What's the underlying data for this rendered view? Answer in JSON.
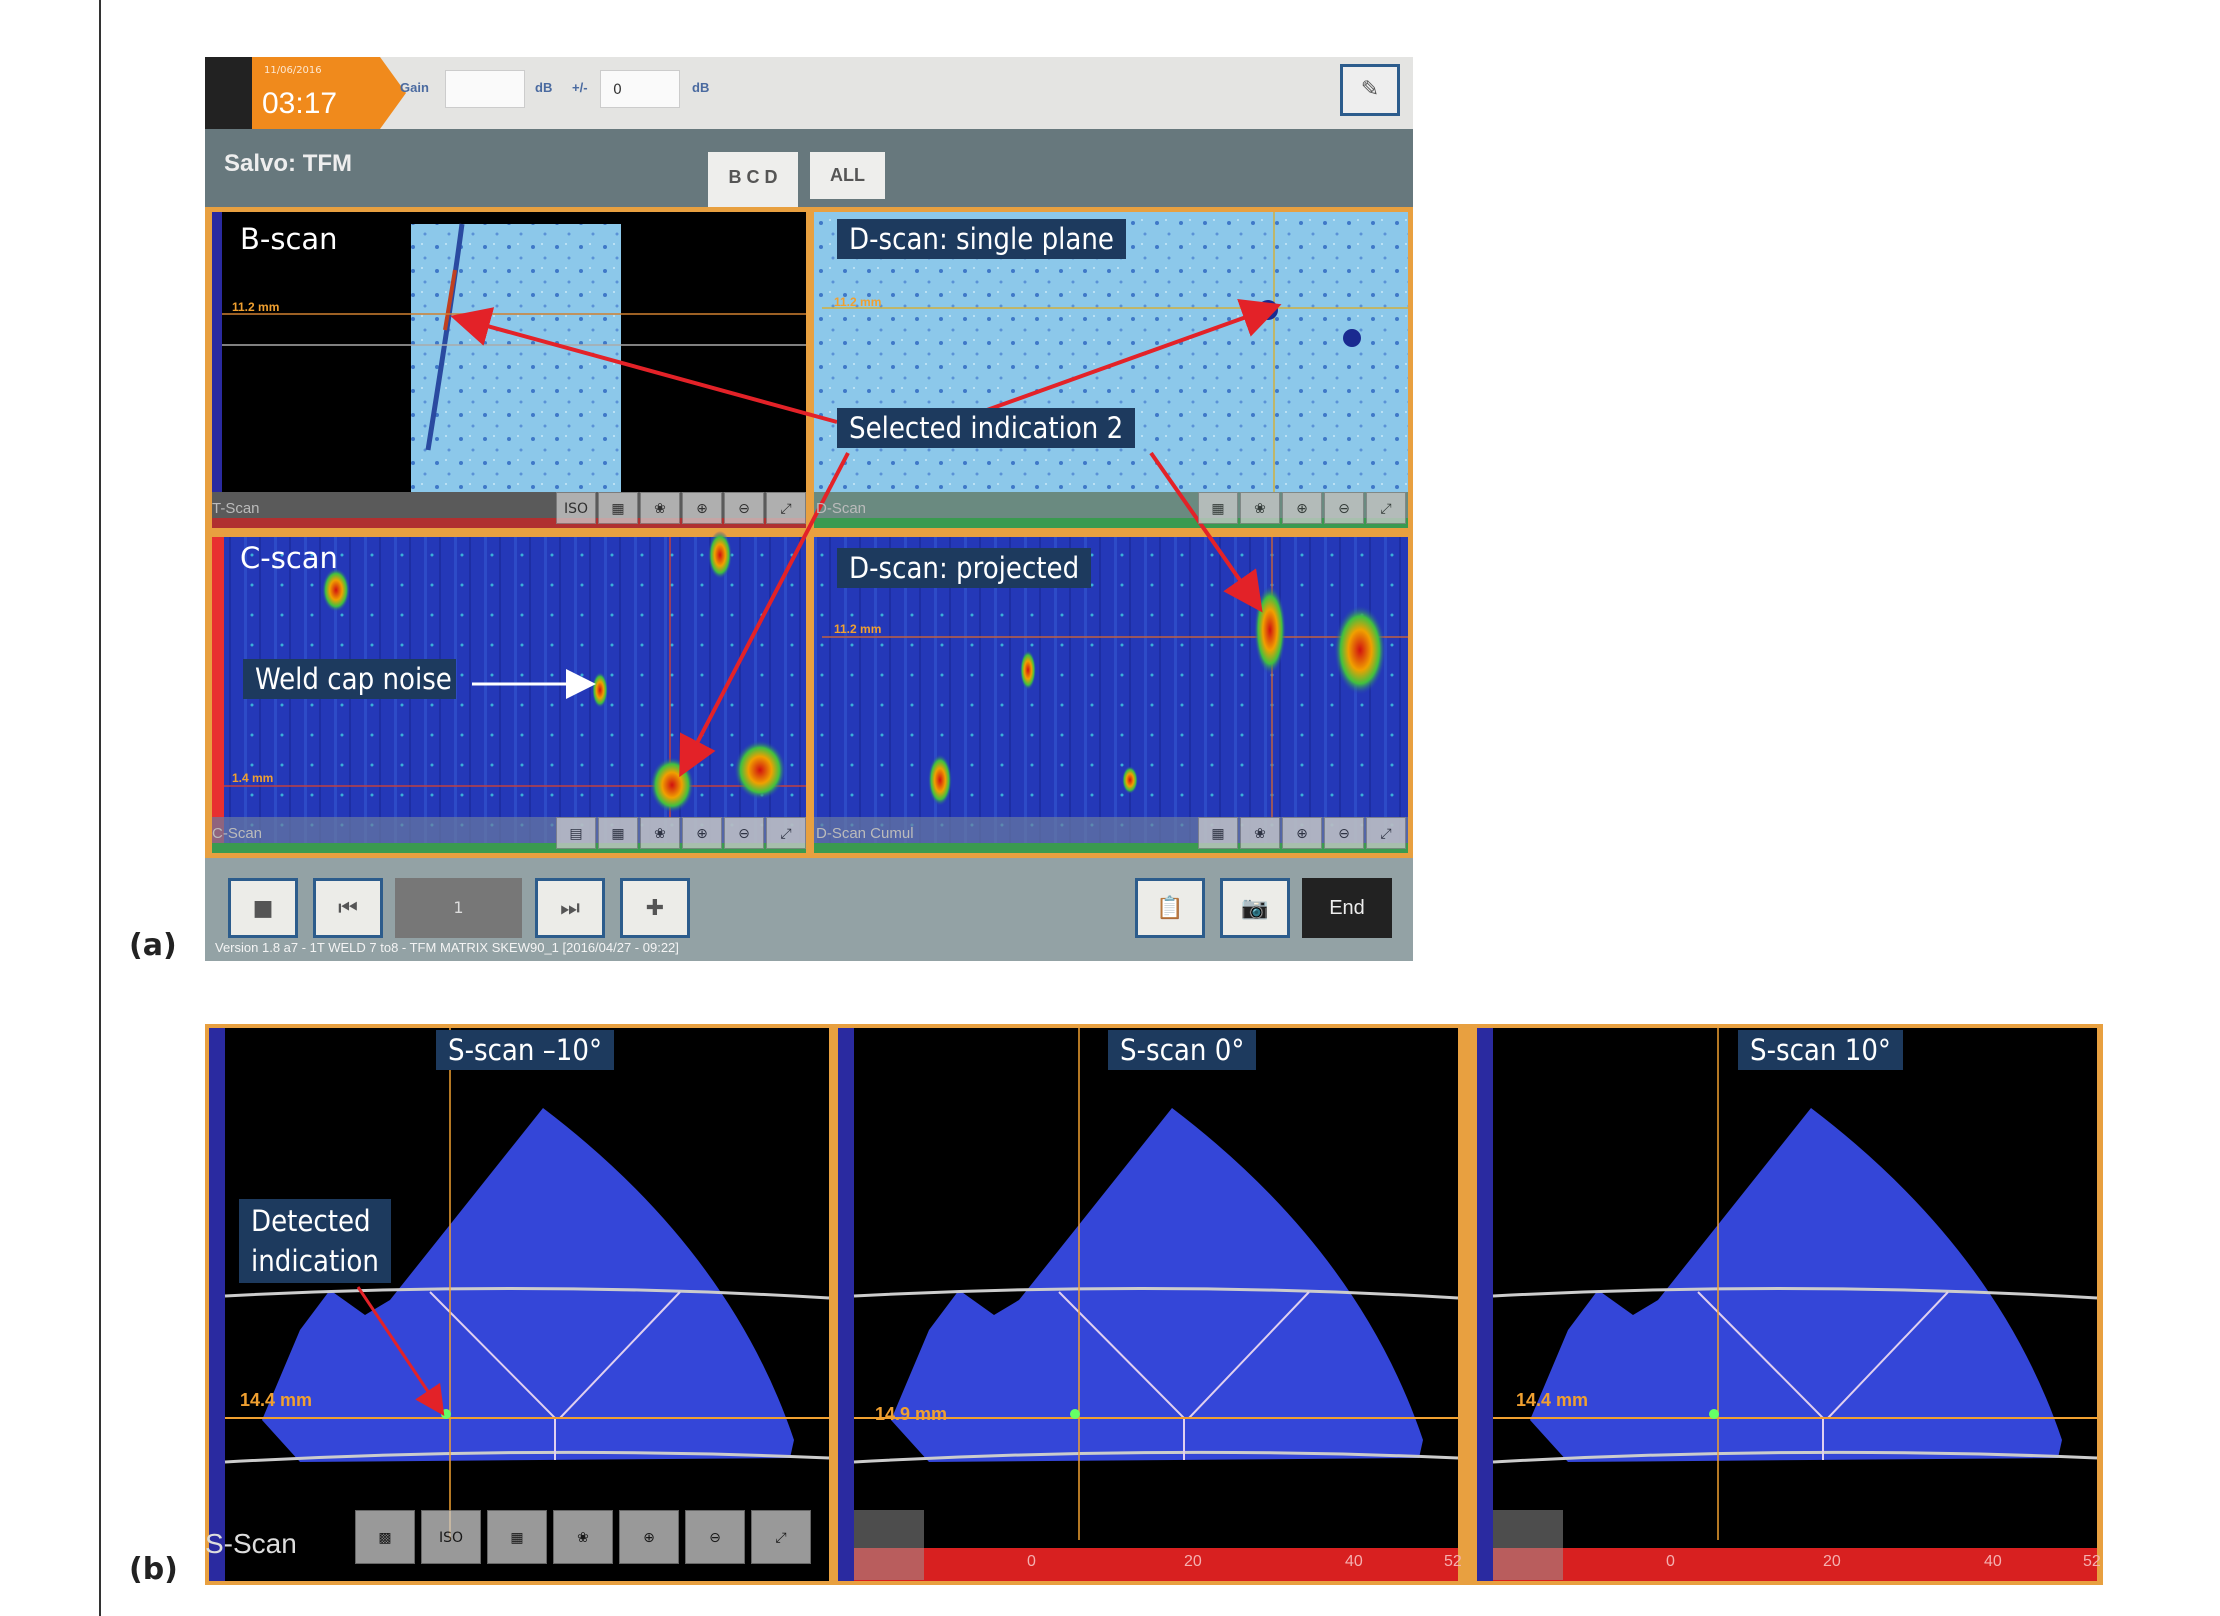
{
  "figure_labels": {
    "a": "(a)",
    "b": "(b)"
  },
  "topbar": {
    "date": "11/06/2016",
    "time": "03:17",
    "gain_label": "Gain",
    "gain_value": "",
    "gain_unit": "dB",
    "plusminus_label": "+/-",
    "plusminus_value": "0",
    "plusminus_unit": "dB",
    "probe_icon": "probe-icon"
  },
  "salvo": {
    "title": "Salvo: TFM",
    "tabs": [
      {
        "label": "B C D"
      },
      {
        "label": "ALL"
      }
    ]
  },
  "panels": {
    "bscan": {
      "label": "B-scan",
      "footer": "T-Scan",
      "marker": "11.2 mm"
    },
    "dscan_single": {
      "label": "D-scan: single plane",
      "footer": "D-Scan",
      "marker": "11.2 mm"
    },
    "cscan": {
      "label": "C-scan",
      "footer": "C-Scan",
      "marker": "1.4 mm"
    },
    "dscan_projected": {
      "label": "D-scan: projected",
      "footer": "D-Scan Cumul",
      "marker": "11.2 mm"
    }
  },
  "tools": {
    "iso": "ISO"
  },
  "annotations": {
    "selected": "Selected indication 2",
    "weld_cap": "Weld cap noise",
    "detected_line1": "Detected",
    "detected_line2": "indication"
  },
  "bottombar": {
    "frame_value": "1",
    "end_label": "End",
    "version": "Version 1.8 a7 - 1T WELD 7 to8 - TFM MATRIX SKEW90_1 [2016/04/27 - 09:22]"
  },
  "sscans": [
    {
      "label": "S-scan –10°",
      "marker": "14.4 mm"
    },
    {
      "label": "S-scan 0°",
      "marker": "14.9 mm"
    },
    {
      "label": "S-scan 10°",
      "marker": "14.4 mm"
    }
  ],
  "sscan_footer": "S-Scan",
  "sscan_axis_ticks": [
    "0",
    "20",
    "40",
    "52"
  ],
  "colors": {
    "accent_orange": "#f08a1c",
    "arrow_red": "#e32228",
    "label_bg": "#1d3a5e",
    "scan_blue": "#2a40c8"
  }
}
